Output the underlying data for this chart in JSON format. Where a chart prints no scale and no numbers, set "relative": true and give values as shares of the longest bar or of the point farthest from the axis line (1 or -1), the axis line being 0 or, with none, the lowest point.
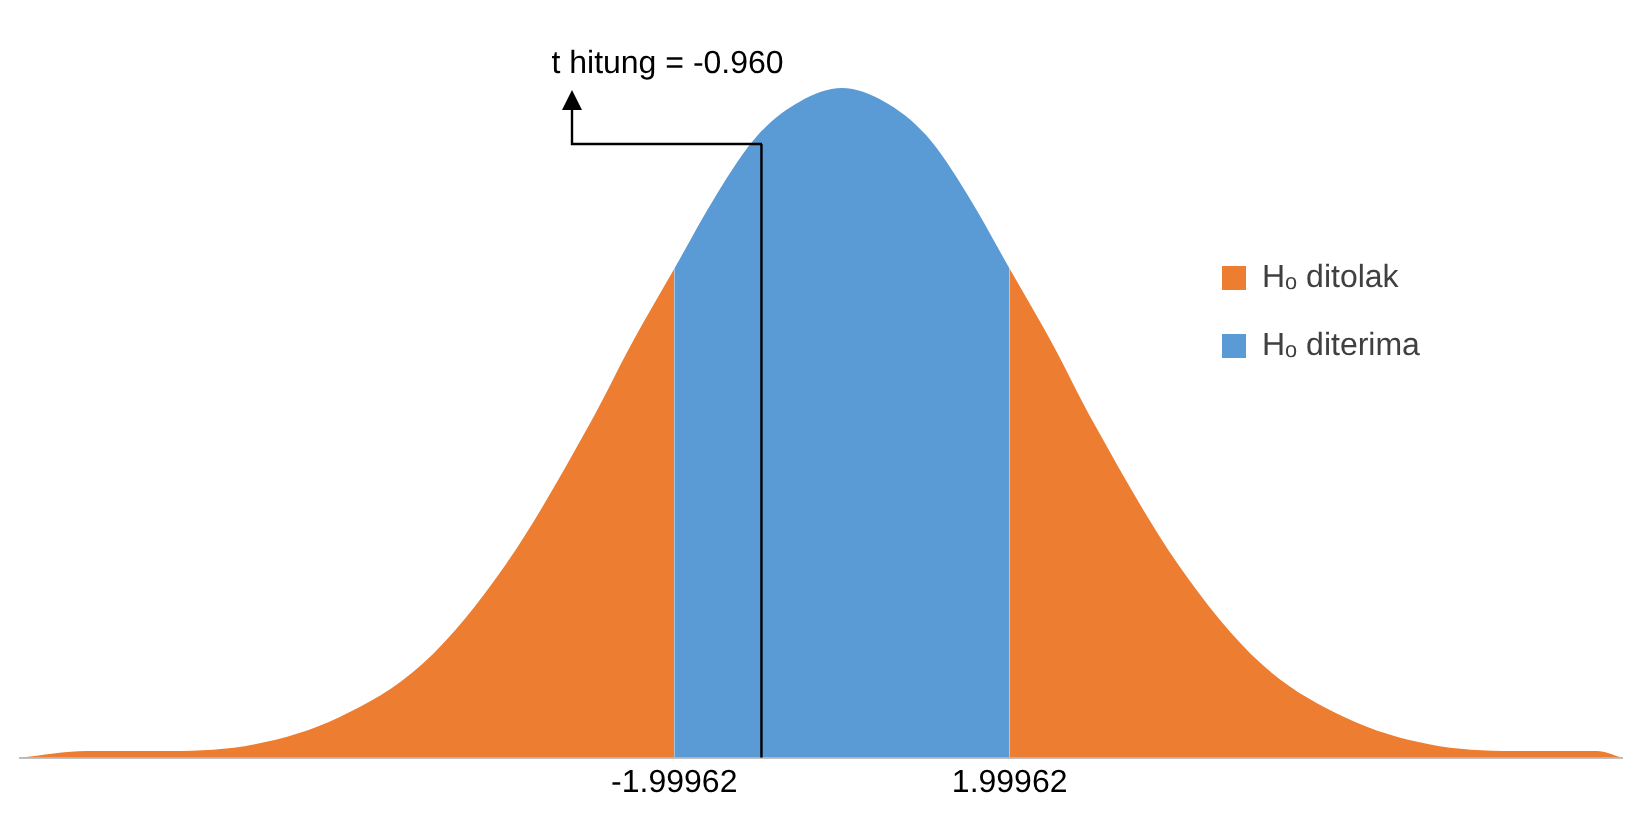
{
  "chart_data": {
    "type": "area",
    "relative": true,
    "xlim": [
      -9.8,
      9.3
    ],
    "xticks": [
      -1.99962,
      1.99962
    ],
    "series": [
      {
        "name": "Hₒ ditolak",
        "color": "#ed7d31",
        "x": [
          -9.8,
          -9,
          -8,
          -7,
          -6,
          -5,
          -4,
          -3,
          -2.5,
          -1.99962,
          0,
          1.99962,
          2.5,
          3,
          4,
          5,
          6,
          7,
          8,
          9,
          9.3
        ],
        "values": [
          0,
          0.01,
          0.01,
          0.02,
          0.06,
          0.14,
          0.29,
          0.5,
          0.62,
          0.73,
          null,
          0.73,
          0.62,
          0.5,
          0.29,
          0.14,
          0.06,
          0.02,
          0.01,
          0.01,
          0
        ]
      },
      {
        "name": "Hₒ diterima",
        "color": "#5b9bd5",
        "x": [
          -1.99962,
          -1.5,
          -1,
          -0.5,
          0,
          0.5,
          1,
          1.5,
          1.99962
        ],
        "values": [
          0.73,
          0.84,
          0.93,
          0.98,
          1,
          0.98,
          0.93,
          0.84,
          0.73
        ]
      }
    ],
    "ref_lines": [
      {
        "axis": "x",
        "value": -0.96,
        "label": "t hitung = -0.960",
        "color": "#000000"
      }
    ],
    "grid": false,
    "legend": "right"
  }
}
